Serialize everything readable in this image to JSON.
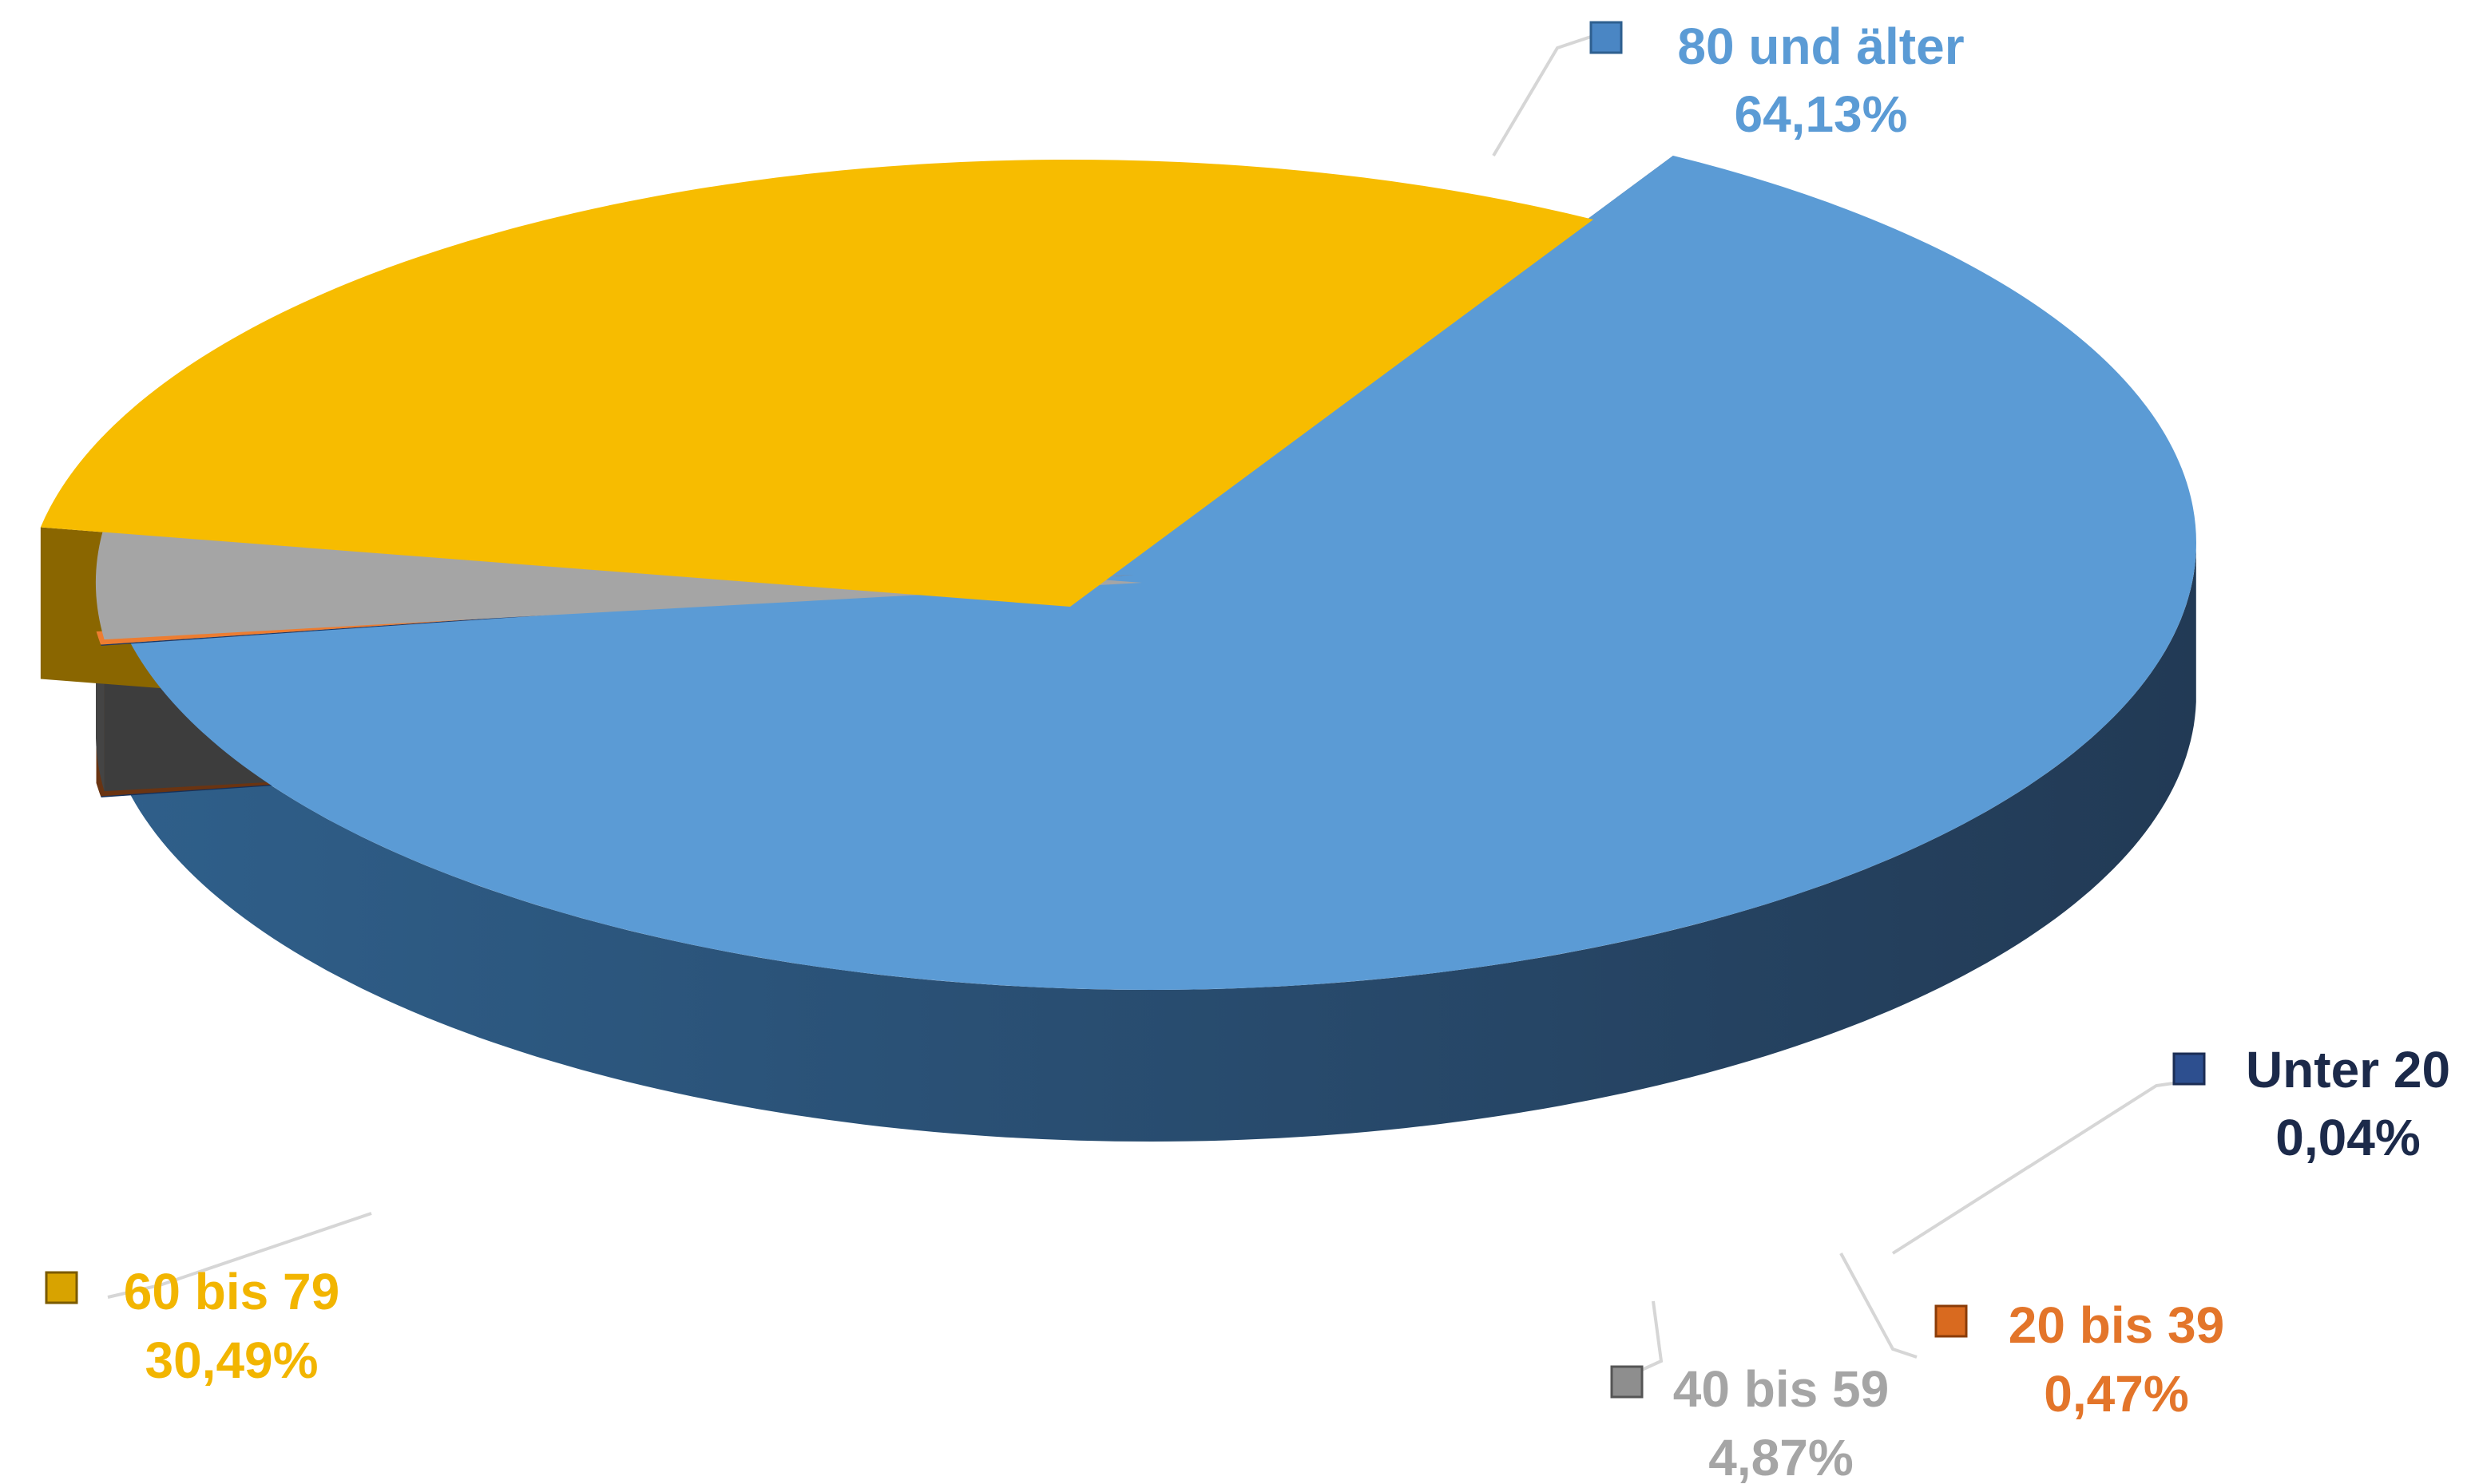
{
  "chart_data": {
    "type": "pie",
    "style": "3d-exploded",
    "series": [
      {
        "name": "80 und älter",
        "value": 64.13,
        "label": "64,13%",
        "color": "#5b9bd5",
        "text_color": "#5b9bd5"
      },
      {
        "name": "Unter 20",
        "value": 0.04,
        "label": "0,04%",
        "color": "#1f3864",
        "text_color": "#1c2a4a"
      },
      {
        "name": "20 bis 39",
        "value": 0.47,
        "label": "0,47%",
        "color": "#ed7d31",
        "text_color": "#e3752a"
      },
      {
        "name": "40 bis 59",
        "value": 4.87,
        "label": "4,87%",
        "color": "#a5a5a5",
        "text_color": "#a5a5a5"
      },
      {
        "name": "60 bis 79",
        "value": 30.49,
        "label": "30,49%",
        "color": "#f7bc00",
        "text_color": "#f2b500"
      }
    ]
  }
}
